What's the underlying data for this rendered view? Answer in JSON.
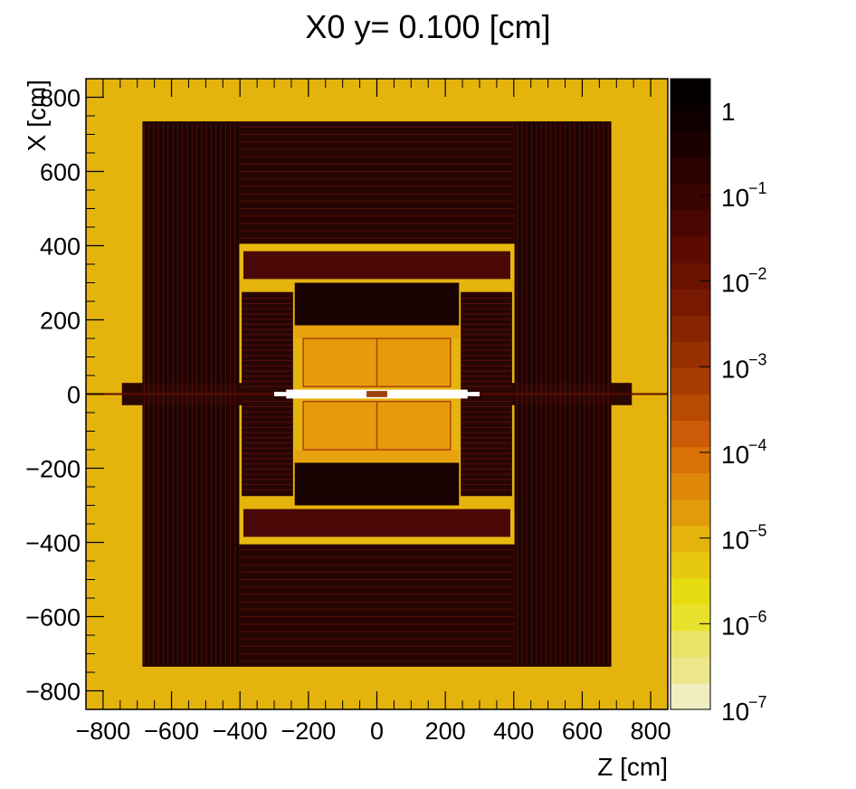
{
  "chart_data": {
    "type": "heatmap",
    "title": "X0 y=  0.100 [cm]",
    "xlabel": "Z [cm]",
    "ylabel": "X [cm]",
    "xlim": [
      -850,
      850
    ],
    "ylim": [
      -850,
      850
    ],
    "x_ticks": [
      -800,
      -600,
      -400,
      -200,
      0,
      200,
      400,
      600,
      800
    ],
    "y_ticks": [
      -800,
      -600,
      -400,
      -200,
      0,
      200,
      400,
      600,
      800
    ],
    "x_tick_labels": [
      "−800",
      "−600",
      "−400",
      "−200",
      "0",
      "200",
      "400",
      "600",
      "800"
    ],
    "y_tick_labels": [
      "−800",
      "−600",
      "−400",
      "−200",
      "0",
      "200",
      "400",
      "600",
      "800"
    ],
    "colorbar": {
      "scale": "log",
      "range": [
        1e-07,
        2.3
      ],
      "labels": [
        {
          "base": "1",
          "exp": "",
          "value": 1
        },
        {
          "base": "10",
          "exp": "−1",
          "value": 0.1
        },
        {
          "base": "10",
          "exp": "−2",
          "value": 0.01
        },
        {
          "base": "10",
          "exp": "−3",
          "value": 0.001
        },
        {
          "base": "10",
          "exp": "−4",
          "value": 0.0001
        },
        {
          "base": "10",
          "exp": "−5",
          "value": 1e-05
        },
        {
          "base": "10",
          "exp": "−6",
          "value": 1e-06
        },
        {
          "base": "10",
          "exp": "−7",
          "value": 1e-07
        }
      ],
      "colors": [
        "#f0eec0",
        "#ece78a",
        "#e9e46a",
        "#e8e22c",
        "#e6dc12",
        "#e6c80e",
        "#e4b30c",
        "#e09c0b",
        "#de8708",
        "#d97008",
        "#cc5a06",
        "#b94a04",
        "#a73c03",
        "#983002",
        "#872502",
        "#781a01",
        "#6a1201",
        "#5c0b01",
        "#4a0701",
        "#3a0401",
        "#2a0201",
        "#1a0100",
        "#0e0000",
        "#040000"
      ]
    },
    "regions": [
      {
        "name": "background",
        "z": [
          -850,
          850
        ],
        "x": [
          -850,
          850
        ],
        "value": 1e-05,
        "color": "#e5b40c"
      },
      {
        "name": "muon-endcap-neg",
        "z": [
          -685,
          -402
        ],
        "x": [
          -735,
          735
        ],
        "value": 0.5,
        "color": "#1e0303"
      },
      {
        "name": "muon-endcap-pos",
        "z": [
          402,
          685
        ],
        "x": [
          -735,
          735
        ],
        "value": 0.5,
        "color": "#1e0303"
      },
      {
        "name": "muon-barrel-top",
        "z": [
          -402,
          402
        ],
        "x": [
          405,
          735
        ],
        "value": 0.2,
        "color": "#270404"
      },
      {
        "name": "muon-barrel-bottom",
        "z": [
          -402,
          402
        ],
        "x": [
          -735,
          -405
        ],
        "value": 0.2,
        "color": "#270404"
      },
      {
        "name": "coil-gap-top",
        "z": [
          -402,
          402
        ],
        "x": [
          310,
          405
        ],
        "value": 1e-05,
        "color": "#e9b90f"
      },
      {
        "name": "coil-gap-bottom",
        "z": [
          -402,
          402
        ],
        "x": [
          -405,
          -310
        ],
        "value": 1e-05,
        "color": "#e9b90f"
      },
      {
        "name": "solenoid-top",
        "z": [
          -390,
          390
        ],
        "x": [
          310,
          385
        ],
        "value": 0.05,
        "color": "#4a0906"
      },
      {
        "name": "solenoid-bottom",
        "z": [
          -390,
          390
        ],
        "x": [
          -385,
          -310
        ],
        "value": 0.05,
        "color": "#4a0906"
      },
      {
        "name": "hcal-endcap-neg",
        "z": [
          -395,
          -245
        ],
        "x": [
          -275,
          275
        ],
        "value": 0.3,
        "color": "#280505"
      },
      {
        "name": "hcal-endcap-pos",
        "z": [
          245,
          395
        ],
        "x": [
          -275,
          275
        ],
        "value": 0.3,
        "color": "#280505"
      },
      {
        "name": "hcal-barrel-top",
        "z": [
          -240,
          240
        ],
        "x": [
          185,
          300
        ],
        "value": 0.4,
        "color": "#180202"
      },
      {
        "name": "hcal-barrel-bottom",
        "z": [
          -240,
          240
        ],
        "x": [
          -300,
          -185
        ],
        "value": 0.4,
        "color": "#180202"
      },
      {
        "name": "ecal-top",
        "z": [
          -240,
          240
        ],
        "x": [
          150,
          185
        ],
        "value": 0.001,
        "color": "#e6a30d"
      },
      {
        "name": "ecal-bottom",
        "z": [
          -240,
          240
        ],
        "x": [
          -185,
          -150
        ],
        "value": 0.001,
        "color": "#e6a30d"
      },
      {
        "name": "tracker-top",
        "z": [
          -215,
          215
        ],
        "x": [
          20,
          150
        ],
        "value": 0.001,
        "color": "#e59b0a"
      },
      {
        "name": "tracker-bottom",
        "z": [
          -215,
          215
        ],
        "x": [
          -150,
          -20
        ],
        "value": 0.001,
        "color": "#e59b0a"
      },
      {
        "name": "beam-pipe",
        "z": [
          -300,
          300
        ],
        "x": [
          -12,
          12
        ],
        "value": 1e-07,
        "color": "#ffffff"
      },
      {
        "name": "forward-neg",
        "z": [
          -745,
          -265
        ],
        "x": [
          -30,
          30
        ],
        "value": 0.3,
        "color": "#2a0604"
      },
      {
        "name": "forward-pos",
        "z": [
          265,
          745
        ],
        "x": [
          -30,
          30
        ],
        "value": 0.3,
        "color": "#2a0604"
      },
      {
        "name": "pixel-core",
        "z": [
          -30,
          30
        ],
        "x": [
          -8,
          8
        ],
        "value": 0.01,
        "color": "#a0400a"
      }
    ]
  }
}
